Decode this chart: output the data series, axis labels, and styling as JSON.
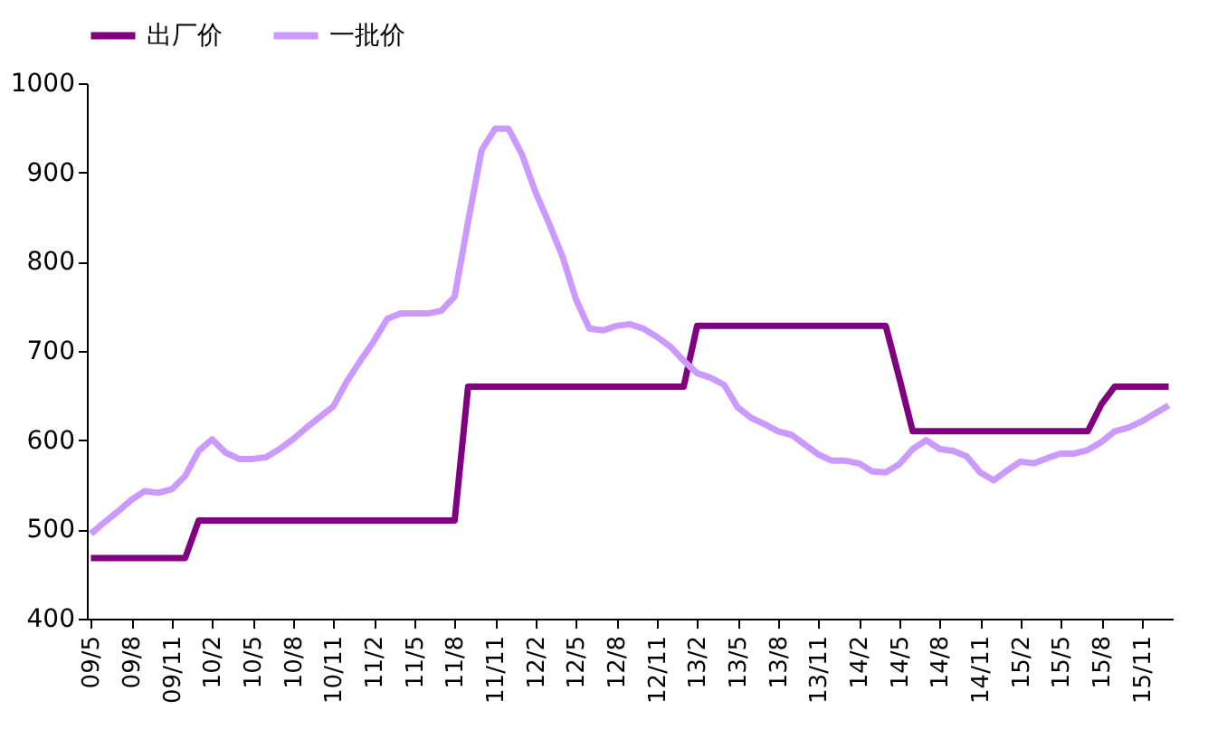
{
  "chart_data": {
    "type": "line",
    "categories": [
      "09/5",
      null,
      null,
      "09/8",
      null,
      null,
      "09/11",
      null,
      null,
      "10/2",
      null,
      null,
      "10/5",
      null,
      null,
      "10/8",
      null,
      null,
      "10/11",
      null,
      null,
      "11/2",
      null,
      null,
      "11/5",
      null,
      null,
      "11/8",
      null,
      null,
      "11/11",
      null,
      null,
      "12/2",
      null,
      null,
      "12/5",
      null,
      null,
      "12/8",
      null,
      null,
      "12/11",
      null,
      null,
      "13/2",
      null,
      null,
      "13/5",
      null,
      null,
      "13/8",
      null,
      null,
      "13/11",
      null,
      null,
      "14/2",
      null,
      null,
      "14/5",
      null,
      null,
      "14/8",
      null,
      null,
      "14/11",
      null,
      null,
      "15/2",
      null,
      null,
      "15/5",
      null,
      null,
      "15/8",
      null,
      null,
      "15/11",
      null,
      null
    ],
    "series": [
      {
        "name": "出厂价",
        "color": "#800080",
        "values": [
          468,
          468,
          468,
          468,
          468,
          468,
          468,
          468,
          510,
          510,
          510,
          510,
          510,
          510,
          510,
          510,
          510,
          510,
          510,
          510,
          510,
          510,
          510,
          510,
          510,
          510,
          510,
          510,
          660,
          660,
          660,
          660,
          660,
          660,
          660,
          660,
          660,
          660,
          660,
          660,
          660,
          660,
          660,
          660,
          660,
          728,
          728,
          728,
          728,
          728,
          728,
          728,
          728,
          728,
          728,
          728,
          728,
          728,
          728,
          728,
          670,
          610,
          610,
          610,
          610,
          610,
          610,
          610,
          610,
          610,
          610,
          610,
          610,
          610,
          610,
          640,
          660,
          660,
          660,
          660,
          660
        ]
      },
      {
        "name": "一批价",
        "color": "#cc99ff",
        "values": [
          495,
          508,
          520,
          533,
          543,
          541,
          545,
          560,
          588,
          601,
          586,
          579,
          579,
          581,
          590,
          601,
          614,
          626,
          638,
          666,
          689,
          711,
          736,
          742,
          742,
          742,
          745,
          761,
          845,
          925,
          949,
          949,
          920,
          878,
          843,
          806,
          758,
          725,
          723,
          728,
          730,
          725,
          716,
          705,
          689,
          675,
          670,
          662,
          637,
          625,
          618,
          610,
          606,
          595,
          584,
          577,
          577,
          574,
          565,
          564,
          573,
          590,
          600,
          590,
          588,
          582,
          564,
          555,
          566,
          576,
          574,
          580,
          585,
          585,
          589,
          598,
          610,
          614,
          621,
          630,
          639
        ]
      }
    ],
    "ylim": [
      400,
      1000
    ],
    "yticks": [
      400,
      500,
      600,
      700,
      800,
      900,
      1000
    ],
    "grid": false,
    "legend": "top",
    "marker": "none",
    "line_style": "solid"
  }
}
